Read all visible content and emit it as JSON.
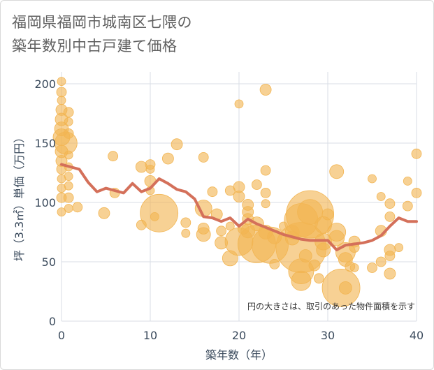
{
  "title_line1": "福岡県福岡市城南区七隈の",
  "title_line2": "築年数別中古戸建て価格",
  "colors": {
    "bubble": "#f2b552",
    "line": "#d4705a",
    "grid": "#d8dee6",
    "text": "#3a4a5c"
  },
  "chart_data": {
    "type": "scatter",
    "title": "福岡県福岡市城南区七隈の築年数別中古戸建て価格",
    "xlabel": "築年数（年）",
    "ylabel": "坪（3.3㎡）単価（万円）",
    "xlim": [
      0,
      40
    ],
    "ylim": [
      0,
      210
    ],
    "xticks": [
      0,
      10,
      20,
      30,
      40
    ],
    "yticks": [
      0,
      50,
      100,
      150,
      200
    ],
    "grid": true,
    "note": "円の大きさは、取引のあった物件面積を示す",
    "series": [
      {
        "type": "bubble",
        "points": [
          {
            "x": 0,
            "y": 202,
            "s": 6
          },
          {
            "x": 0,
            "y": 193,
            "s": 7
          },
          {
            "x": 0,
            "y": 186,
            "s": 6
          },
          {
            "x": 0,
            "y": 178,
            "s": 8
          },
          {
            "x": 0,
            "y": 170,
            "s": 9
          },
          {
            "x": 0,
            "y": 162,
            "s": 10
          },
          {
            "x": 0,
            "y": 155,
            "s": 12
          },
          {
            "x": 0.5,
            "y": 150,
            "s": 16
          },
          {
            "x": 0,
            "y": 143,
            "s": 9
          },
          {
            "x": 0,
            "y": 135,
            "s": 8
          },
          {
            "x": 0,
            "y": 128,
            "s": 7
          },
          {
            "x": 0,
            "y": 120,
            "s": 6
          },
          {
            "x": 0,
            "y": 112,
            "s": 6
          },
          {
            "x": 0,
            "y": 104,
            "s": 7
          },
          {
            "x": 0,
            "y": 92,
            "s": 6
          },
          {
            "x": 0.8,
            "y": 176,
            "s": 7
          },
          {
            "x": 0.8,
            "y": 168,
            "s": 6
          },
          {
            "x": 0.8,
            "y": 158,
            "s": 7
          },
          {
            "x": 0.8,
            "y": 140,
            "s": 6
          },
          {
            "x": 0.8,
            "y": 130,
            "s": 6
          },
          {
            "x": 0.8,
            "y": 122,
            "s": 6
          },
          {
            "x": 0.8,
            "y": 114,
            "s": 6
          },
          {
            "x": 0.8,
            "y": 104,
            "s": 7
          },
          {
            "x": 0.8,
            "y": 95,
            "s": 6
          },
          {
            "x": 1.8,
            "y": 96,
            "s": 7
          },
          {
            "x": 4.8,
            "y": 91,
            "s": 8
          },
          {
            "x": 5.8,
            "y": 139,
            "s": 7
          },
          {
            "x": 6,
            "y": 108,
            "s": 7
          },
          {
            "x": 9,
            "y": 130,
            "s": 8
          },
          {
            "x": 9,
            "y": 81,
            "s": 7
          },
          {
            "x": 10,
            "y": 132,
            "s": 7
          },
          {
            "x": 10,
            "y": 128,
            "s": 6
          },
          {
            "x": 10,
            "y": 118,
            "s": 8
          },
          {
            "x": 10,
            "y": 110,
            "s": 6
          },
          {
            "x": 10.5,
            "y": 88,
            "s": 6
          },
          {
            "x": 11,
            "y": 91,
            "s": 27
          },
          {
            "x": 12,
            "y": 137,
            "s": 8
          },
          {
            "x": 13,
            "y": 149,
            "s": 8
          },
          {
            "x": 14,
            "y": 83,
            "s": 7
          },
          {
            "x": 14,
            "y": 74,
            "s": 6
          },
          {
            "x": 16,
            "y": 138,
            "s": 7
          },
          {
            "x": 16,
            "y": 95,
            "s": 12
          },
          {
            "x": 16,
            "y": 78,
            "s": 8
          },
          {
            "x": 16,
            "y": 73,
            "s": 10
          },
          {
            "x": 17,
            "y": 109,
            "s": 7
          },
          {
            "x": 17.5,
            "y": 90,
            "s": 8
          },
          {
            "x": 18,
            "y": 76,
            "s": 7
          },
          {
            "x": 18,
            "y": 66,
            "s": 9
          },
          {
            "x": 19,
            "y": 110,
            "s": 7
          },
          {
            "x": 19,
            "y": 80,
            "s": 6
          },
          {
            "x": 19,
            "y": 53,
            "s": 11
          },
          {
            "x": 20,
            "y": 183,
            "s": 6
          },
          {
            "x": 20,
            "y": 113,
            "s": 8
          },
          {
            "x": 20,
            "y": 105,
            "s": 8
          },
          {
            "x": 20,
            "y": 67,
            "s": 20
          },
          {
            "x": 20.5,
            "y": 78,
            "s": 8
          },
          {
            "x": 21,
            "y": 98,
            "s": 8
          },
          {
            "x": 21,
            "y": 92,
            "s": 8
          },
          {
            "x": 21,
            "y": 86,
            "s": 8
          },
          {
            "x": 21,
            "y": 76,
            "s": 10
          },
          {
            "x": 22,
            "y": 115,
            "s": 7
          },
          {
            "x": 22,
            "y": 82,
            "s": 10
          },
          {
            "x": 22,
            "y": 65,
            "s": 27
          },
          {
            "x": 23,
            "y": 195,
            "s": 8
          },
          {
            "x": 23,
            "y": 127,
            "s": 7
          },
          {
            "x": 23,
            "y": 108,
            "s": 7
          },
          {
            "x": 23,
            "y": 99,
            "s": 6
          },
          {
            "x": 23,
            "y": 75,
            "s": 10
          },
          {
            "x": 23.5,
            "y": 64,
            "s": 26
          },
          {
            "x": 24,
            "y": 71,
            "s": 10
          },
          {
            "x": 24,
            "y": 48,
            "s": 7
          },
          {
            "x": 25,
            "y": 80,
            "s": 6
          },
          {
            "x": 26,
            "y": 75,
            "s": 10
          },
          {
            "x": 26,
            "y": 70,
            "s": 10
          },
          {
            "x": 27,
            "y": 85,
            "s": 24
          },
          {
            "x": 27,
            "y": 62,
            "s": 36
          },
          {
            "x": 27,
            "y": 42,
            "s": 18
          },
          {
            "x": 27,
            "y": 34,
            "s": 14
          },
          {
            "x": 27.5,
            "y": 55,
            "s": 9
          },
          {
            "x": 28,
            "y": 90,
            "s": 34
          },
          {
            "x": 28,
            "y": 92,
            "s": 18
          },
          {
            "x": 28.5,
            "y": 47,
            "s": 8
          },
          {
            "x": 29,
            "y": 36,
            "s": 7
          },
          {
            "x": 29.5,
            "y": 81,
            "s": 12
          },
          {
            "x": 29.5,
            "y": 67,
            "s": 12
          },
          {
            "x": 29.5,
            "y": 60,
            "s": 10
          },
          {
            "x": 30,
            "y": 90,
            "s": 8
          },
          {
            "x": 31,
            "y": 126,
            "s": 10
          },
          {
            "x": 31,
            "y": 75,
            "s": 13
          },
          {
            "x": 31,
            "y": 70,
            "s": 11
          },
          {
            "x": 31.5,
            "y": 28,
            "s": 27
          },
          {
            "x": 32,
            "y": 58,
            "s": 14
          },
          {
            "x": 32,
            "y": 52,
            "s": 10
          },
          {
            "x": 32,
            "y": 28,
            "s": 9
          },
          {
            "x": 32.5,
            "y": 46,
            "s": 7
          },
          {
            "x": 33,
            "y": 67,
            "s": 8
          },
          {
            "x": 33,
            "y": 62,
            "s": 7
          },
          {
            "x": 33,
            "y": 45,
            "s": 6
          },
          {
            "x": 35,
            "y": 120,
            "s": 6
          },
          {
            "x": 35,
            "y": 45,
            "s": 7
          },
          {
            "x": 36,
            "y": 105,
            "s": 6
          },
          {
            "x": 36,
            "y": 76,
            "s": 8
          },
          {
            "x": 36,
            "y": 50,
            "s": 7
          },
          {
            "x": 37,
            "y": 99,
            "s": 7
          },
          {
            "x": 37,
            "y": 88,
            "s": 7
          },
          {
            "x": 37,
            "y": 60,
            "s": 8
          },
          {
            "x": 37,
            "y": 55,
            "s": 7
          },
          {
            "x": 37,
            "y": 40,
            "s": 8
          },
          {
            "x": 38,
            "y": 62,
            "s": 6
          },
          {
            "x": 39,
            "y": 118,
            "s": 6
          },
          {
            "x": 39,
            "y": 97,
            "s": 7
          },
          {
            "x": 40,
            "y": 141,
            "s": 7
          },
          {
            "x": 40,
            "y": 108,
            "s": 7
          }
        ]
      },
      {
        "type": "line",
        "x": [
          0,
          1,
          2,
          3,
          4,
          5,
          6,
          7,
          8,
          9,
          10,
          11,
          12,
          13,
          14,
          15,
          16,
          17,
          18,
          19,
          20,
          21,
          22,
          23,
          24,
          25,
          26,
          27,
          28,
          29,
          30,
          31,
          32,
          33,
          34,
          35,
          36,
          37,
          38,
          39,
          40
        ],
        "values": [
          132,
          130,
          128,
          117,
          109,
          112,
          110,
          108,
          116,
          109,
          112,
          120,
          116,
          111,
          109,
          103,
          88,
          87,
          84,
          87,
          80,
          86,
          82,
          79,
          76,
          73,
          71,
          69,
          68,
          68,
          68,
          60,
          64,
          65,
          66,
          68,
          72,
          80,
          87,
          84,
          84
        ]
      }
    ]
  }
}
